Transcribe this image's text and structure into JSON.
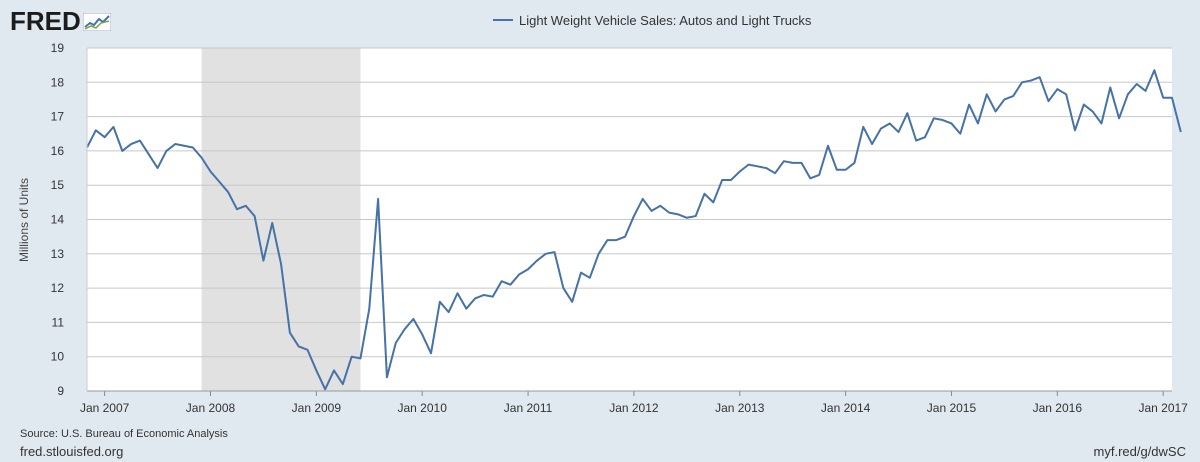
{
  "brand": {
    "name": "FRED",
    "logo_icon": "fred-mini-graph-icon"
  },
  "footer": {
    "source": "Source: U.S. Bureau of Economic Analysis",
    "site": "fred.stlouisfed.org",
    "short_url": "myf.red/g/dwSC"
  },
  "colors": {
    "line": "#4572a7",
    "recession": "#e1e1e1",
    "grid": "#c8c8c8",
    "background": "#e1e9f0",
    "plot_bg": "#ffffff"
  },
  "chart_data": {
    "type": "line",
    "title": "",
    "xlabel": "",
    "ylabel": "Millions of Units",
    "ylim": [
      9,
      19
    ],
    "xlim": [
      "2006-11",
      "2017-02"
    ],
    "y_ticks": [
      "9",
      "10",
      "11",
      "12",
      "13",
      "14",
      "15",
      "16",
      "17",
      "18",
      "19"
    ],
    "x_ticks": [
      {
        "label": "Jan 2007",
        "date": "2007-01"
      },
      {
        "label": "Jan 2008",
        "date": "2008-01"
      },
      {
        "label": "Jan 2009",
        "date": "2009-01"
      },
      {
        "label": "Jan 2010",
        "date": "2010-01"
      },
      {
        "label": "Jan 2011",
        "date": "2011-01"
      },
      {
        "label": "Jan 2012",
        "date": "2012-01"
      },
      {
        "label": "Jan 2013",
        "date": "2013-01"
      },
      {
        "label": "Jan 2014",
        "date": "2014-01"
      },
      {
        "label": "Jan 2015",
        "date": "2015-01"
      },
      {
        "label": "Jan 2016",
        "date": "2016-01"
      },
      {
        "label": "Jan 2017",
        "date": "2017-01"
      }
    ],
    "legend": {
      "position": "top-center"
    },
    "grid": true,
    "recession": {
      "start": "2007-12",
      "end": "2009-06"
    },
    "series": [
      {
        "name": "Light Weight Vehicle Sales: Autos and Light Trucks",
        "start": "2006-11",
        "values": [
          16.1,
          16.6,
          16.4,
          16.7,
          16.0,
          16.2,
          16.3,
          15.9,
          15.5,
          16.0,
          16.2,
          16.15,
          16.1,
          15.8,
          15.4,
          15.1,
          14.8,
          14.3,
          14.4,
          14.1,
          12.8,
          13.9,
          12.7,
          10.7,
          10.3,
          10.2,
          9.6,
          9.05,
          9.6,
          9.2,
          10.0,
          9.95,
          11.4,
          14.6,
          9.4,
          10.4,
          10.8,
          11.1,
          10.65,
          10.1,
          11.6,
          11.3,
          11.85,
          11.4,
          11.7,
          11.8,
          11.75,
          12.2,
          12.1,
          12.4,
          12.55,
          12.8,
          13.0,
          13.05,
          12.0,
          11.6,
          12.45,
          12.3,
          13.0,
          13.4,
          13.4,
          13.5,
          14.1,
          14.6,
          14.25,
          14.4,
          14.2,
          14.15,
          14.05,
          14.1,
          14.75,
          14.5,
          15.15,
          15.15,
          15.4,
          15.6,
          15.55,
          15.5,
          15.35,
          15.7,
          15.65,
          15.65,
          15.2,
          15.3,
          16.15,
          15.45,
          15.45,
          15.65,
          16.7,
          16.2,
          16.65,
          16.8,
          16.55,
          17.1,
          16.3,
          16.4,
          16.95,
          16.9,
          16.8,
          16.5,
          17.35,
          16.8,
          17.65,
          17.15,
          17.5,
          17.6,
          18.0,
          18.05,
          18.15,
          17.45,
          17.8,
          17.65,
          16.6,
          17.35,
          17.15,
          16.8,
          17.85,
          16.95,
          17.65,
          17.95,
          17.75,
          18.35,
          17.55,
          17.55,
          16.55
        ]
      }
    ]
  }
}
